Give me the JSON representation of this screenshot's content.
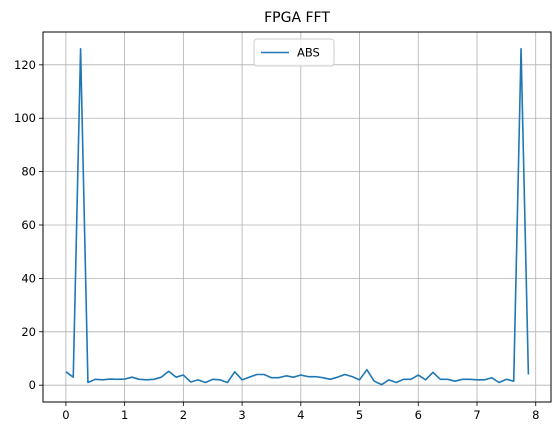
{
  "chart_data": {
    "type": "line",
    "title": "FPGA FFT",
    "xlabel": "",
    "ylabel": "",
    "xlim": [
      -0.39,
      8.26
    ],
    "ylim": [
      -6.3,
      132.3
    ],
    "xticks": [
      0,
      1,
      2,
      3,
      4,
      5,
      6,
      7,
      8
    ],
    "yticks": [
      0,
      20,
      40,
      60,
      80,
      100,
      120
    ],
    "grid": true,
    "legend": "top-center",
    "series": [
      {
        "name": "ABS",
        "color": "#1f77b4",
        "x": [
          0,
          0.125,
          0.25,
          0.375,
          0.5,
          0.625,
          0.75,
          0.875,
          1,
          1.125,
          1.25,
          1.375,
          1.5,
          1.625,
          1.75,
          1.875,
          2,
          2.125,
          2.25,
          2.375,
          2.5,
          2.625,
          2.75,
          2.875,
          3,
          3.125,
          3.25,
          3.375,
          3.5,
          3.625,
          3.75,
          3.875,
          4,
          4.125,
          4.25,
          4.375,
          4.5,
          4.625,
          4.75,
          4.875,
          5,
          5.125,
          5.25,
          5.375,
          5.5,
          5.625,
          5.75,
          5.875,
          6,
          6.125,
          6.25,
          6.375,
          6.5,
          6.625,
          6.75,
          6.875,
          7,
          7.125,
          7.25,
          7.375,
          7.5,
          7.625,
          7.75,
          7.875
        ],
        "y": [
          5,
          3,
          126,
          1,
          2.2,
          2,
          2.3,
          2.2,
          2.3,
          3,
          2.2,
          2,
          2.2,
          3,
          5.2,
          3,
          3.8,
          1.2,
          2,
          1,
          2.2,
          2,
          1,
          5,
          2,
          3,
          4,
          4,
          2.8,
          2.8,
          3.5,
          3,
          3.8,
          3.2,
          3.2,
          2.8,
          2.2,
          3,
          4,
          3.2,
          2,
          5.8,
          1.5,
          0.2,
          2,
          1,
          2.2,
          2.2,
          3.8,
          2,
          4.8,
          2.2,
          2.2,
          1.5,
          2.2,
          2.2,
          2,
          2,
          2.8,
          1,
          2.2,
          1.5,
          126,
          4
        ]
      }
    ]
  }
}
